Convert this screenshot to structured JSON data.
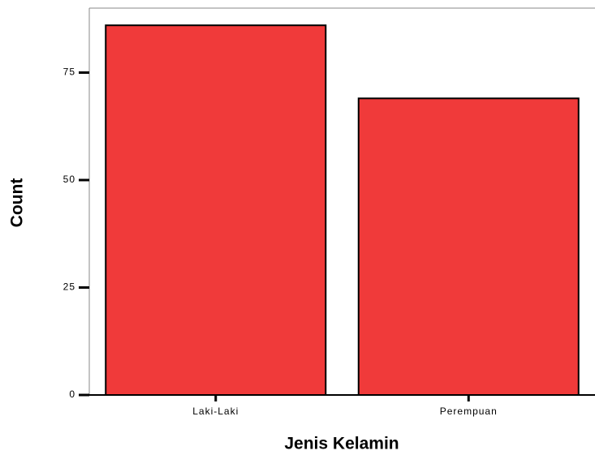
{
  "chart_data": {
    "type": "bar",
    "x_label": "Jenis Kelamin",
    "y_label": "Count",
    "categories": [
      "Laki-Laki",
      "Perempuan"
    ],
    "values": [
      86,
      69
    ],
    "color": "#f03a3a",
    "ylim": [
      0,
      90
    ],
    "yticks": [
      0,
      25,
      50,
      75
    ]
  }
}
